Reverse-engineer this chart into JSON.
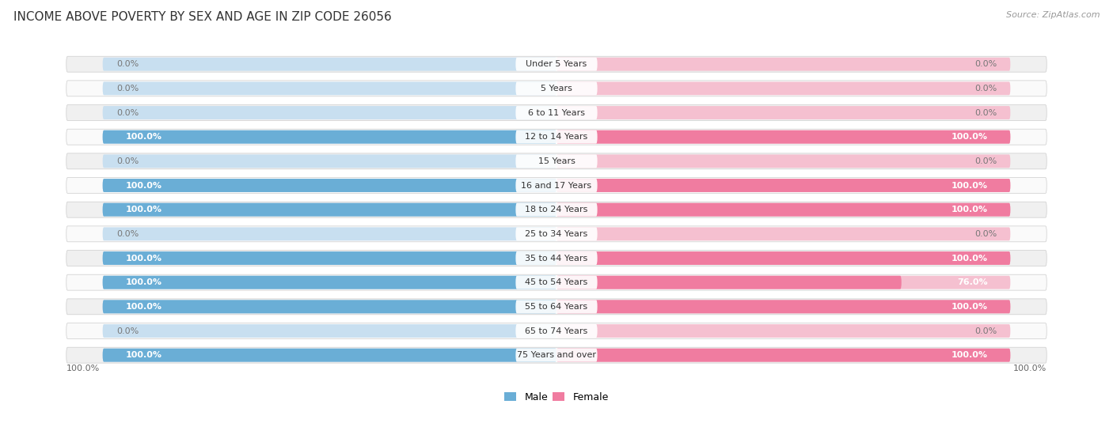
{
  "title": "INCOME ABOVE POVERTY BY SEX AND AGE IN ZIP CODE 26056",
  "source": "Source: ZipAtlas.com",
  "categories": [
    "Under 5 Years",
    "5 Years",
    "6 to 11 Years",
    "12 to 14 Years",
    "15 Years",
    "16 and 17 Years",
    "18 to 24 Years",
    "25 to 34 Years",
    "35 to 44 Years",
    "45 to 54 Years",
    "55 to 64 Years",
    "65 to 74 Years",
    "75 Years and over"
  ],
  "male_values": [
    0.0,
    0.0,
    0.0,
    100.0,
    0.0,
    100.0,
    100.0,
    0.0,
    100.0,
    100.0,
    100.0,
    0.0,
    100.0
  ],
  "female_values": [
    0.0,
    0.0,
    0.0,
    100.0,
    0.0,
    100.0,
    100.0,
    0.0,
    100.0,
    76.0,
    100.0,
    0.0,
    100.0
  ],
  "male_color": "#6aaed6",
  "female_color": "#f07ca0",
  "male_label": "Male",
  "female_label": "Female",
  "bg_color": "#ffffff",
  "bar_bg_male": "#c8dff0",
  "bar_bg_female": "#f5c0d0",
  "row_bg_even": "#f0f0f0",
  "row_bg_odd": "#fafafa",
  "title_fontsize": 11,
  "source_fontsize": 8,
  "label_fontsize": 8,
  "category_fontsize": 8,
  "legend_fontsize": 9,
  "axis_label_fontsize": 8
}
